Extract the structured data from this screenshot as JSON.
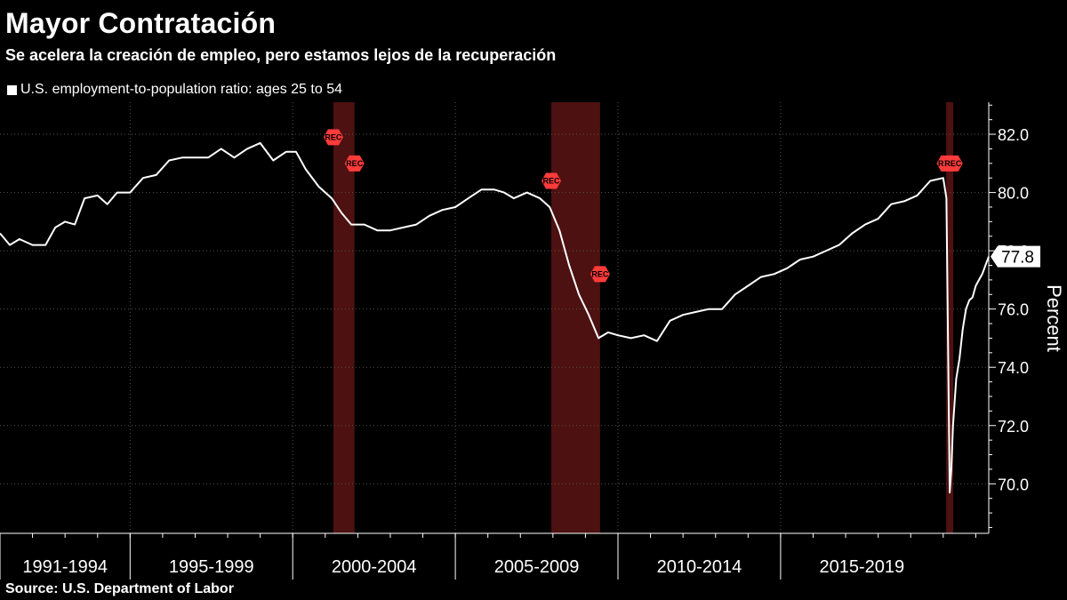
{
  "title": "Mayor Contratación",
  "subtitle": "Se acelera la creación de empleo, pero estamos lejos de la recuperación",
  "source": "Source:  U.S. Department of Labor",
  "colors": {
    "background": "#000000",
    "line": "#ffffff",
    "recession_band": "#5a1414",
    "rec_marker": "#ff3b3b",
    "grid": "#555555"
  },
  "chart_data": {
    "type": "line",
    "title": "Mayor Contratación",
    "subtitle": "Se acelera la creación de empleo, pero estamos lejos de la recuperación",
    "ylabel": "Percent",
    "ylim": [
      68.3,
      83.1
    ],
    "yticks": [
      70.0,
      72.0,
      74.0,
      76.0,
      78.0,
      80.0,
      82.0
    ],
    "ytick_labels": [
      "70.0",
      "72.0",
      "74.0",
      "76.0",
      "78.0",
      "80.0",
      "82.0"
    ],
    "x_range": [
      1991.0,
      2021.4
    ],
    "x_sections": [
      {
        "label": "1991-1994",
        "start": 1991,
        "end": 1995
      },
      {
        "label": "1995-1999",
        "start": 1995,
        "end": 2000
      },
      {
        "label": "2000-2004",
        "start": 2000,
        "end": 2005
      },
      {
        "label": "2005-2009",
        "start": 2005,
        "end": 2010
      },
      {
        "label": "2010-2014",
        "start": 2010,
        "end": 2015
      },
      {
        "label": "2015-2019",
        "start": 2015,
        "end": 2020
      }
    ],
    "grid": true,
    "legend_position": "top-left",
    "series": [
      {
        "name": "U.S. employment-to-population ratio: ages 25 to 54",
        "x": [
          1991.0,
          1991.3,
          1991.6,
          1992.0,
          1992.4,
          1992.7,
          1993.0,
          1993.3,
          1993.6,
          1994.0,
          1994.3,
          1994.6,
          1995.0,
          1995.4,
          1995.8,
          1996.2,
          1996.6,
          1997.0,
          1997.4,
          1997.8,
          1998.2,
          1998.6,
          1999.0,
          1999.4,
          1999.8,
          2000.1,
          2000.4,
          2000.8,
          2001.2,
          2001.5,
          2001.8,
          2002.2,
          2002.6,
          2003.0,
          2003.4,
          2003.8,
          2004.2,
          2004.6,
          2005.0,
          2005.4,
          2005.8,
          2006.2,
          2006.5,
          2006.8,
          2007.2,
          2007.6,
          2007.9,
          2008.2,
          2008.5,
          2008.8,
          2009.1,
          2009.4,
          2009.7,
          2010.0,
          2010.4,
          2010.8,
          2011.2,
          2011.6,
          2012.0,
          2012.4,
          2012.8,
          2013.2,
          2013.6,
          2014.0,
          2014.4,
          2014.8,
          2015.2,
          2015.6,
          2016.0,
          2016.4,
          2016.8,
          2017.2,
          2017.6,
          2018.0,
          2018.4,
          2018.8,
          2019.2,
          2019.6,
          2020.0,
          2020.1,
          2020.2,
          2020.25,
          2020.3,
          2020.4,
          2020.5,
          2020.6,
          2020.7,
          2020.8,
          2020.9,
          2021.0,
          2021.1,
          2021.2,
          2021.3,
          2021.4
        ],
        "values": [
          78.6,
          78.2,
          78.4,
          78.2,
          78.2,
          78.8,
          79.0,
          78.9,
          79.8,
          79.9,
          79.6,
          80.0,
          80.0,
          80.5,
          80.6,
          81.1,
          81.2,
          81.2,
          81.2,
          81.5,
          81.2,
          81.5,
          81.7,
          81.1,
          81.4,
          81.4,
          80.8,
          80.2,
          79.8,
          79.3,
          78.9,
          78.9,
          78.7,
          78.7,
          78.8,
          78.9,
          79.2,
          79.4,
          79.5,
          79.8,
          80.1,
          80.1,
          80.0,
          79.8,
          80.0,
          79.8,
          79.5,
          78.7,
          77.5,
          76.5,
          75.8,
          75.0,
          75.2,
          75.1,
          75.0,
          75.1,
          74.9,
          75.6,
          75.8,
          75.9,
          76.0,
          76.0,
          76.5,
          76.8,
          77.1,
          77.2,
          77.4,
          77.7,
          77.8,
          78.0,
          78.2,
          78.6,
          78.9,
          79.1,
          79.6,
          79.7,
          79.9,
          80.4,
          80.5,
          79.8,
          69.7,
          70.5,
          72.0,
          73.6,
          74.3,
          75.3,
          76.0,
          76.3,
          76.4,
          76.8,
          77.0,
          77.2,
          77.5,
          77.8
        ]
      }
    ],
    "last_value_label": "77.8",
    "recessions": [
      {
        "start": 2001.25,
        "end": 2001.9,
        "label": "REC"
      },
      {
        "start": 2007.95,
        "end": 2009.45,
        "label": "REC"
      },
      {
        "start": 2020.1,
        "end": 2020.3,
        "label": "REC"
      }
    ],
    "rec_markers": [
      {
        "x": 2001.25,
        "y": 81.9,
        "label": "REC"
      },
      {
        "x": 2001.9,
        "y": 81.0,
        "label": "REC"
      },
      {
        "x": 2007.95,
        "y": 80.4,
        "label": "REC"
      },
      {
        "x": 2009.45,
        "y": 77.2,
        "label": "REC"
      },
      {
        "x": 2020.1,
        "y": 81.0,
        "label": "REC"
      },
      {
        "x": 2020.3,
        "y": 81.0,
        "label": "REC"
      }
    ]
  }
}
